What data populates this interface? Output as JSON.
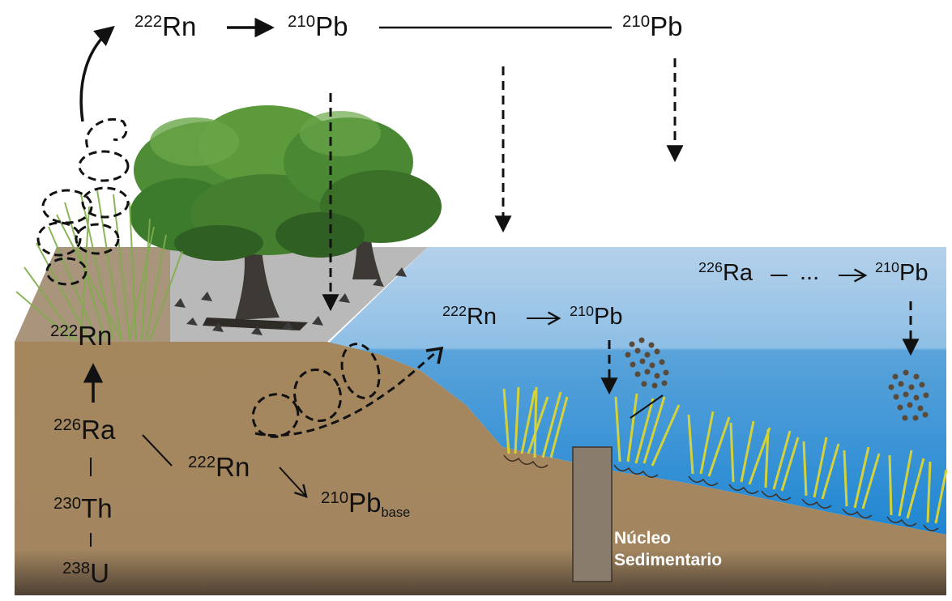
{
  "atmosphere": {
    "rn222": {
      "mass": "222",
      "symbol": "Rn"
    },
    "pb210_left": {
      "mass": "210",
      "symbol": "Pb"
    },
    "pb210_right": {
      "mass": "210",
      "symbol": "Pb"
    }
  },
  "water": {
    "ra226": {
      "mass": "226",
      "symbol": "Ra"
    },
    "ellipsis": "...",
    "pb210_far": {
      "mass": "210",
      "symbol": "Pb"
    },
    "rn222": {
      "mass": "222",
      "symbol": "Rn"
    },
    "pb210": {
      "mass": "210",
      "symbol": "Pb"
    }
  },
  "soil": {
    "rn222_surface": {
      "mass": "222",
      "symbol": "Rn"
    },
    "ra226": {
      "mass": "226",
      "symbol": "Ra"
    },
    "th230": {
      "mass": "230",
      "symbol": "Th"
    },
    "u238": {
      "mass": "238",
      "symbol": "U"
    },
    "rn222_inner": {
      "mass": "222",
      "symbol": "Rn"
    },
    "pb210_base": {
      "mass": "210",
      "symbol": "Pb",
      "subscript": "base"
    }
  },
  "core": {
    "line1": "Núcleo",
    "line2": "Sedimentario"
  },
  "colors": {
    "soil": "#a5875e",
    "soil_dark": "#5a4a3a",
    "water_top": "#a9c9e6",
    "water_deep": "#3d90d0",
    "marsh_ground": "#bdbdbd",
    "tree_green": "#3e7a2f",
    "seagrass": "#d6d43a",
    "core": "#8a7c6c"
  }
}
